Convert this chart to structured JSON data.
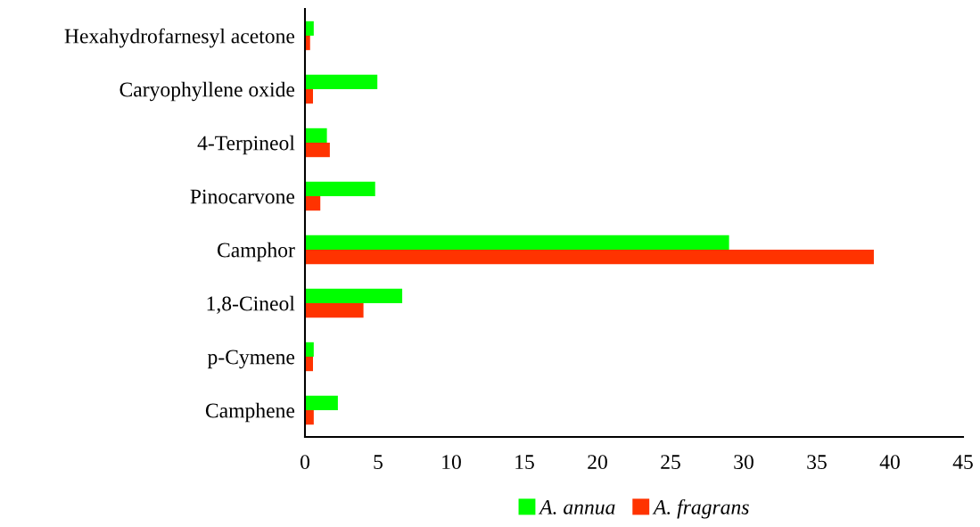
{
  "chart_data": {
    "type": "bar",
    "orientation": "horizontal",
    "categories": [
      "Hexahydrofarnesyl acetone",
      "Caryophyllene oxide",
      "4-Terpineol",
      "Pinocarvone",
      "Camphor",
      "1,8-Cineol",
      "p-Cymene",
      "Camphene"
    ],
    "series": [
      {
        "name": "A. annua",
        "color": "#00ff00",
        "values": [
          0.6,
          4.95,
          1.5,
          4.8,
          29.0,
          6.65,
          0.6,
          2.25
        ]
      },
      {
        "name": "A. fragrans",
        "color": "#ff3300",
        "values": [
          0.35,
          0.55,
          1.7,
          1.05,
          38.9,
          4.0,
          0.55,
          0.6
        ]
      }
    ],
    "xlim": [
      0,
      45
    ],
    "xticks": [
      0,
      5,
      10,
      15,
      20,
      25,
      30,
      35,
      40,
      45
    ],
    "grid": false,
    "legend": "bottom"
  }
}
